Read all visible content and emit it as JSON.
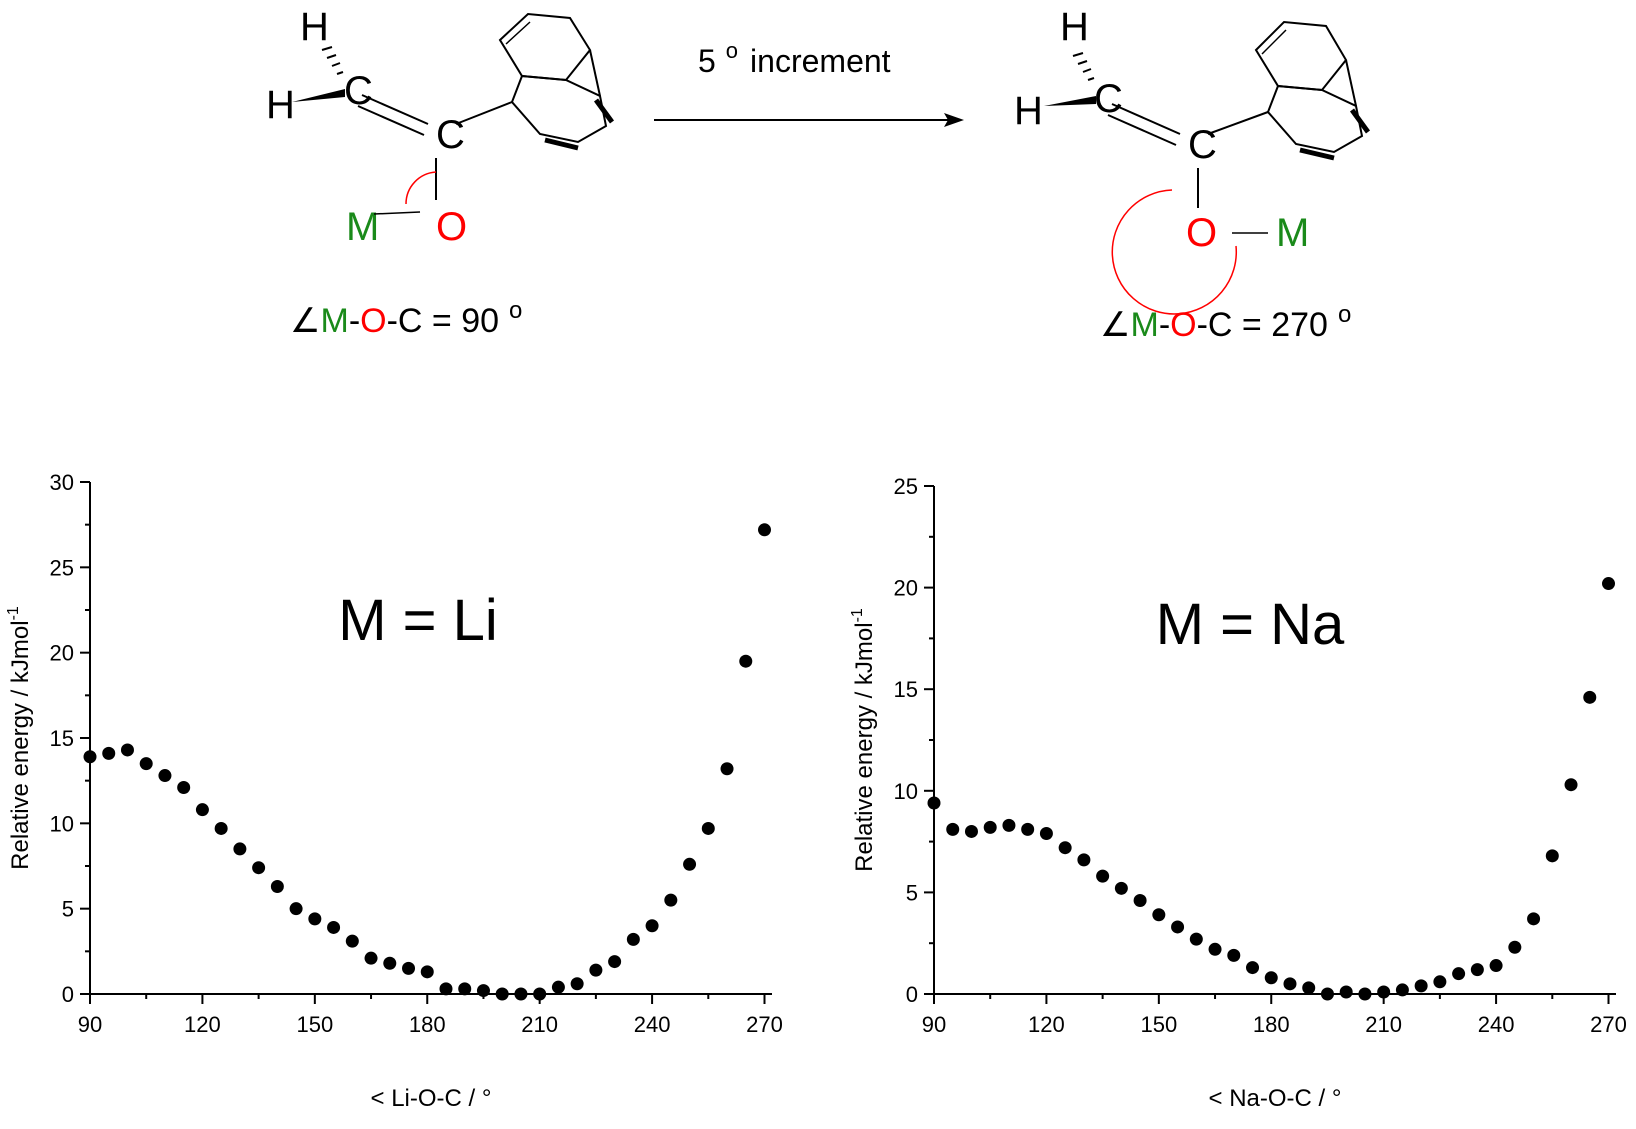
{
  "scheme": {
    "arrow_label": "5",
    "arrow_label_sup": "o",
    "arrow_label_rest": "increment",
    "left_angle": {
      "sym": "∠",
      "m": "M",
      "d1": "-",
      "o": "O",
      "rest": "-C = 90",
      "sup": "o"
    },
    "right_angle": {
      "sym": "∠",
      "m": "M",
      "d1": "-",
      "o": "O",
      "rest": "-C = 270",
      "sup": "o"
    },
    "atoms": {
      "h": "H",
      "c": "C",
      "o": "O",
      "m": "M"
    },
    "colors": {
      "metal": "#1a8a1a",
      "oxygen": "#ff0000",
      "ink": "#000000"
    }
  },
  "chart_data": [
    {
      "type": "scatter",
      "title": "M = Li",
      "xlabel": "< Li-O-C / °",
      "ylabel": "Relative energy / kJmol",
      "ylabel_sup": "-1",
      "xlim": [
        90,
        272
      ],
      "ylim": [
        0,
        30
      ],
      "xticks": [
        90,
        120,
        150,
        180,
        210,
        240,
        270
      ],
      "yticks": [
        0,
        5,
        10,
        15,
        20,
        25,
        30
      ],
      "x": [
        90,
        95,
        100,
        105,
        110,
        115,
        120,
        125,
        130,
        135,
        140,
        145,
        150,
        155,
        160,
        165,
        170,
        175,
        180,
        185,
        190,
        195,
        200,
        205,
        210,
        215,
        220,
        225,
        230,
        235,
        240,
        245,
        250,
        255,
        260,
        265,
        270
      ],
      "y": [
        13.9,
        14.1,
        14.3,
        13.5,
        12.8,
        12.1,
        10.8,
        9.7,
        8.5,
        7.4,
        6.3,
        5.0,
        4.4,
        3.9,
        3.1,
        2.1,
        1.8,
        1.5,
        1.3,
        0.3,
        0.3,
        0.2,
        0.0,
        0.0,
        0.0,
        0.4,
        0.6,
        1.4,
        1.9,
        3.2,
        4.0,
        5.5,
        7.6,
        9.7,
        13.2,
        19.5,
        27.2
      ]
    },
    {
      "type": "scatter",
      "title": "M = Na",
      "xlabel": "< Na-O-C / °",
      "ylabel": "Relative energy / kJmol",
      "ylabel_sup": "-1",
      "xlim": [
        90,
        272
      ],
      "ylim": [
        0,
        25
      ],
      "xticks": [
        90,
        120,
        150,
        180,
        210,
        240,
        270
      ],
      "yticks": [
        0,
        5,
        10,
        15,
        20,
        25
      ],
      "x": [
        90,
        95,
        100,
        105,
        110,
        115,
        120,
        125,
        130,
        135,
        140,
        145,
        150,
        155,
        160,
        165,
        170,
        175,
        180,
        185,
        190,
        195,
        200,
        205,
        210,
        215,
        220,
        225,
        230,
        235,
        240,
        245,
        250,
        255,
        260,
        265,
        270
      ],
      "y": [
        9.4,
        8.1,
        8.0,
        8.2,
        8.3,
        8.1,
        7.9,
        7.2,
        6.6,
        5.8,
        5.2,
        4.6,
        3.9,
        3.3,
        2.7,
        2.2,
        1.9,
        1.3,
        0.8,
        0.5,
        0.3,
        0.0,
        0.1,
        0.0,
        0.1,
        0.2,
        0.4,
        0.6,
        1.0,
        1.2,
        1.4,
        2.3,
        3.7,
        6.8,
        10.3,
        14.6,
        20.2
      ]
    }
  ]
}
